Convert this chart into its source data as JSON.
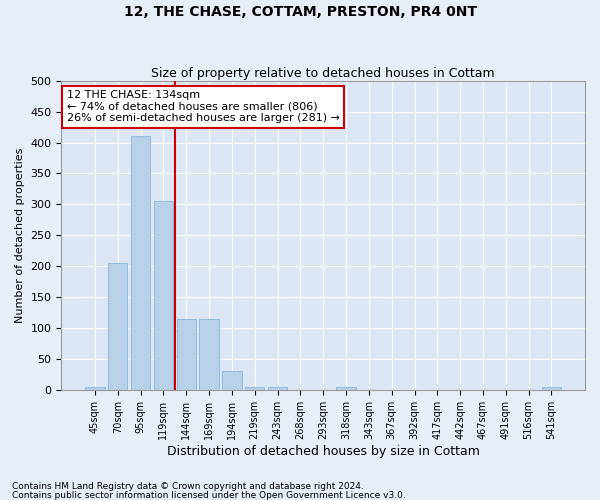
{
  "title": "12, THE CHASE, COTTAM, PRESTON, PR4 0NT",
  "subtitle": "Size of property relative to detached houses in Cottam",
  "xlabel": "Distribution of detached houses by size in Cottam",
  "ylabel": "Number of detached properties",
  "bar_color": "#b8d0e8",
  "bar_edge_color": "#7aafd4",
  "bg_color": "#e8eef7",
  "plot_bg_color": "#dce6f5",
  "grid_color": "#ffffff",
  "annotation_box_color": "#cc0000",
  "vline_color": "#cc0000",
  "categories": [
    "45sqm",
    "70sqm",
    "95sqm",
    "119sqm",
    "144sqm",
    "169sqm",
    "194sqm",
    "219sqm",
    "243sqm",
    "268sqm",
    "293sqm",
    "318sqm",
    "343sqm",
    "367sqm",
    "392sqm",
    "417sqm",
    "442sqm",
    "467sqm",
    "491sqm",
    "516sqm",
    "541sqm"
  ],
  "values": [
    5,
    205,
    410,
    305,
    115,
    115,
    30,
    5,
    5,
    0,
    0,
    5,
    0,
    0,
    0,
    0,
    0,
    0,
    0,
    0,
    5
  ],
  "property_label": "12 THE CHASE: 134sqm",
  "pct_smaller": 74,
  "n_smaller": 806,
  "pct_larger": 26,
  "n_larger": 281,
  "vline_x": 3.5,
  "ylim": [
    0,
    500
  ],
  "yticks": [
    0,
    50,
    100,
    150,
    200,
    250,
    300,
    350,
    400,
    450,
    500
  ],
  "footnote1": "Contains HM Land Registry data © Crown copyright and database right 2024.",
  "footnote2": "Contains public sector information licensed under the Open Government Licence v3.0.",
  "title_fontsize": 10,
  "subtitle_fontsize": 9,
  "ylabel_fontsize": 8,
  "xlabel_fontsize": 9,
  "tick_fontsize": 8,
  "xtick_fontsize": 7,
  "ann_fontsize": 8
}
